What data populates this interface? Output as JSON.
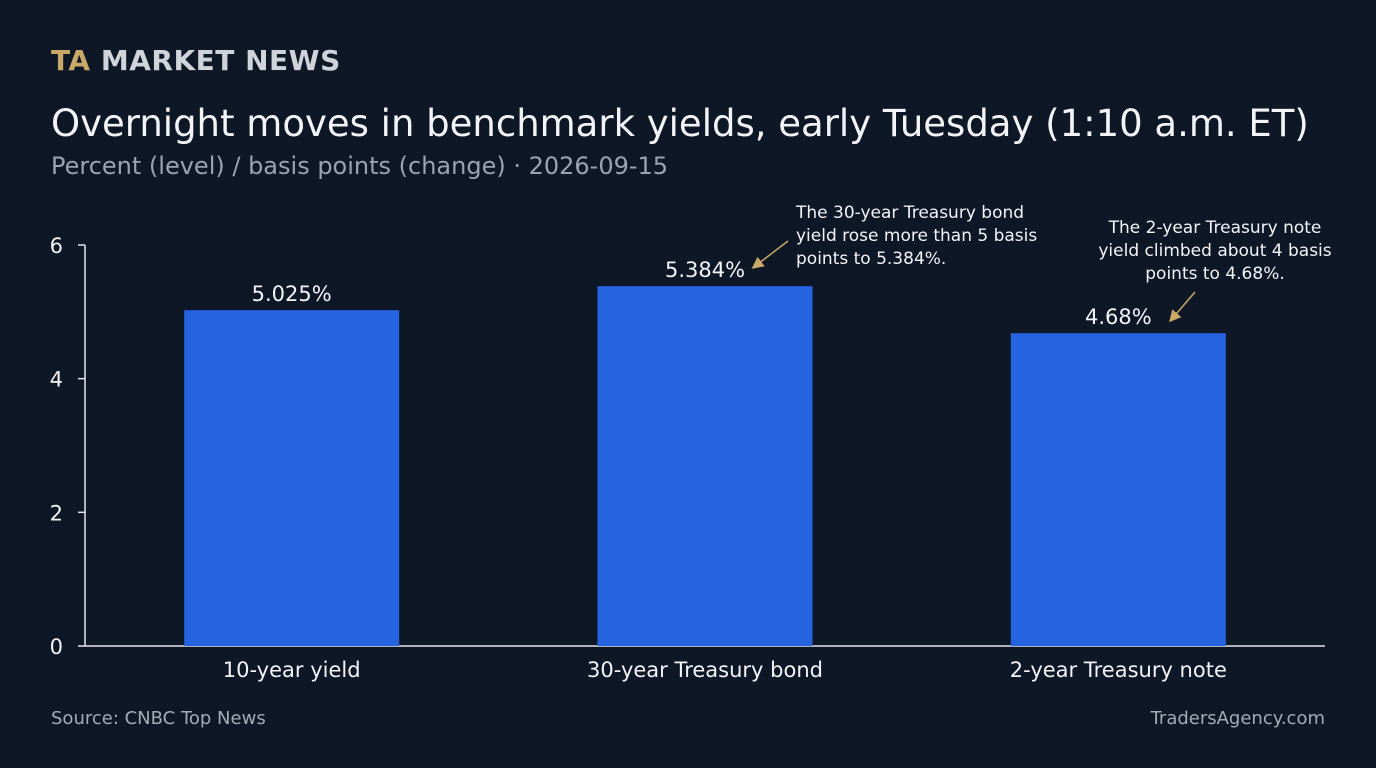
{
  "header": {
    "brand_prefix": "TA",
    "brand_name": "MARKET NEWS",
    "title": "Overnight moves in benchmark yields, early Tuesday (1:10 a.m. ET)",
    "subtitle": "Percent (level) / basis points (change) · 2026-09-15"
  },
  "footer": {
    "source": "Source: CNBC Top News",
    "site": "TradersAgency.com"
  },
  "colors": {
    "background": "#0e1726",
    "bar": "#2563e0",
    "brand_accent": "#c9a968",
    "arrow": "#c9a968"
  },
  "chart_data": {
    "type": "bar",
    "categories": [
      "10-year yield",
      "30-year Treasury bond",
      "2-year Treasury note"
    ],
    "values": [
      5.025,
      5.384,
      4.68
    ],
    "value_labels": [
      "5.025%",
      "5.384%",
      "4.68%"
    ],
    "ylim": [
      0,
      6
    ],
    "yticks": [
      0,
      2,
      4,
      6
    ],
    "grid": false,
    "annotations": [
      {
        "category_index": 1,
        "lines": [
          "The 30-year Treasury bond",
          "yield rose more than 5 basis",
          "points to 5.384%."
        ]
      },
      {
        "category_index": 2,
        "lines": [
          "The 2-year Treasury note",
          "yield climbed about 4 basis",
          "points to 4.68%."
        ]
      }
    ]
  }
}
